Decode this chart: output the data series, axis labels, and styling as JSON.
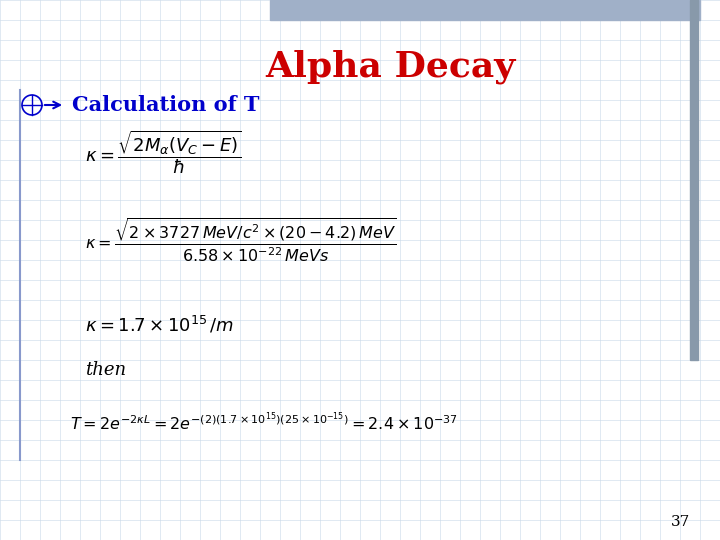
{
  "title": "Alpha Decay",
  "title_color": "#CC0000",
  "title_fontsize": 26,
  "bullet_color": "#0000CC",
  "bullet_text": "Calculation of T",
  "bullet_fontsize": 15,
  "bg_color": "#FFFFFF",
  "grid_color": "#C8D8E8",
  "page_number": "37",
  "top_bar_color": "#A0B0C8",
  "right_line_color": "#8899AA",
  "fig_width": 7.2,
  "fig_height": 5.4,
  "dpi": 100
}
